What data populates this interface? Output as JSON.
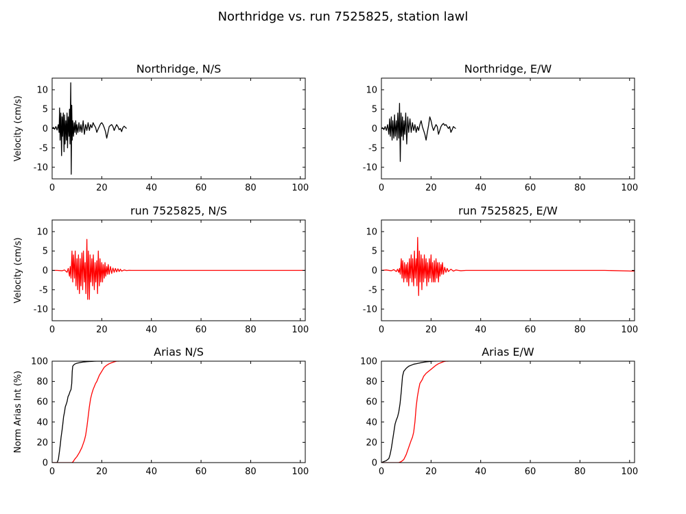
{
  "figure": {
    "title": "Northridge vs. run 7525825, station lawl"
  },
  "chart_data": [
    {
      "type": "line",
      "title": "Northridge, N/S",
      "ylabel": "Velocity (cm/s)",
      "xlim": [
        0,
        102
      ],
      "ylim": [
        -13,
        13
      ],
      "xticks": [
        "0",
        "20",
        "40",
        "60",
        "80",
        "100"
      ],
      "yticks": [
        "-10",
        "-5",
        "0",
        "5",
        "10"
      ],
      "series": [
        {
          "color": "#000000",
          "x": [
            0,
            0.5,
            1,
            1.5,
            2,
            2.5,
            2.8,
            3,
            3.2,
            3.5,
            3.8,
            4,
            4.2,
            4.5,
            4.8,
            5,
            5.2,
            5.5,
            5.8,
            6,
            6.2,
            6.5,
            6.8,
            7,
            7.2,
            7.5,
            7.7,
            7.9,
            8.1,
            8.3,
            8.6,
            8.9,
            9.2,
            9.5,
            9.8,
            10,
            10.4,
            10.8,
            11.2,
            11.6,
            12,
            12.5,
            13,
            13.5,
            14,
            14.5,
            15,
            15.5,
            16,
            16.5,
            17,
            17.5,
            18,
            18.5,
            19,
            19.5,
            20,
            20.5,
            21,
            21.5,
            22,
            22.5,
            23,
            23.5,
            24,
            24.5,
            25,
            25.5,
            26,
            26.5,
            27,
            27.5,
            28,
            28.5,
            29,
            29.5,
            30
          ],
          "y": [
            0,
            0.3,
            -0.2,
            0.5,
            -0.4,
            1,
            -1,
            5.3,
            -3,
            4,
            -7,
            3,
            -2,
            4,
            -6,
            3.5,
            -4,
            2,
            -3,
            4,
            -5,
            3,
            -2,
            5,
            -4,
            11.8,
            -11.8,
            6,
            -3,
            2,
            -2,
            1.5,
            -1,
            2,
            -1.5,
            1,
            -1,
            1.5,
            -0.8,
            1,
            -1,
            2,
            -1.5,
            1,
            -0.5,
            1.5,
            -0.5,
            1,
            0.2,
            1.5,
            0.8,
            0.3,
            -1,
            -0.2,
            0.5,
            1.2,
            1.5,
            1,
            0.2,
            -0.8,
            -2.5,
            -1,
            0.5,
            0.8,
            1,
            0.5,
            -0.5,
            0.3,
            1,
            0.5,
            -0.3,
            0,
            -0.8,
            0.2,
            0.6,
            0.3,
            0
          ]
        }
      ]
    },
    {
      "type": "line",
      "title": "Northridge, E/W",
      "ylabel": "",
      "xlim": [
        0,
        102
      ],
      "ylim": [
        -13,
        13
      ],
      "xticks": [
        "0",
        "20",
        "40",
        "60",
        "80",
        "100"
      ],
      "yticks": [
        "-10",
        "-5",
        "0",
        "5",
        "10"
      ],
      "series": [
        {
          "color": "#000000",
          "x": [
            0,
            0.5,
            1,
            1.5,
            2,
            2.5,
            3,
            3.3,
            3.6,
            4,
            4.3,
            4.6,
            5,
            5.3,
            5.6,
            6,
            6.3,
            6.6,
            7,
            7.3,
            7.6,
            7.9,
            8.2,
            8.5,
            8.8,
            9.1,
            9.4,
            9.8,
            10.2,
            10.6,
            11,
            11.5,
            12,
            12.5,
            13,
            13.5,
            14,
            14.5,
            15,
            15.5,
            16,
            16.5,
            17,
            17.5,
            18,
            18.5,
            19,
            19.5,
            20,
            20.5,
            21,
            21.5,
            22,
            22.5,
            23,
            23.5,
            24,
            24.5,
            25,
            25.5,
            26,
            26.5,
            27,
            27.5,
            28,
            28.5,
            29,
            29.5,
            30
          ],
          "y": [
            0,
            0.2,
            -0.3,
            0.5,
            -0.5,
            1,
            -1.5,
            2.5,
            -2,
            3,
            -3,
            2,
            -2.5,
            3.5,
            -2,
            2,
            -3,
            4,
            -2.5,
            6.5,
            -8.5,
            4,
            -2,
            3,
            -3,
            2,
            -1.5,
            4,
            -4,
            3,
            -1,
            2.5,
            -1,
            1.5,
            -0.5,
            1,
            -1,
            0.5,
            -0.5,
            1,
            2,
            0.5,
            -0.5,
            -1.5,
            -3,
            -1,
            0.8,
            3,
            2,
            0.5,
            -0.5,
            0.3,
            1,
            0.5,
            -1.5,
            -0.5,
            0.5,
            1,
            1.3,
            0.8,
            1,
            0.5,
            0,
            0.5,
            -1,
            -0.3,
            0.5,
            0.2,
            0
          ]
        }
      ]
    },
    {
      "type": "line",
      "title": "run 7525825, N/S",
      "ylabel": "Velocity (cm/s)",
      "xlim": [
        0,
        102
      ],
      "ylim": [
        -13,
        13
      ],
      "xticks": [
        "0",
        "20",
        "40",
        "60",
        "80",
        "100"
      ],
      "yticks": [
        "-10",
        "-5",
        "0",
        "5",
        "10"
      ],
      "series": [
        {
          "color": "#ff0000",
          "x": [
            0,
            2,
            4,
            5,
            6,
            6.5,
            7,
            7.3,
            7.6,
            8,
            8.3,
            8.6,
            9,
            9.3,
            9.6,
            10,
            10.3,
            10.6,
            11,
            11.3,
            11.6,
            12,
            12.3,
            12.6,
            13,
            13.3,
            13.6,
            14,
            14.3,
            14.6,
            15,
            15.3,
            15.6,
            16,
            16.3,
            16.6,
            17,
            17.3,
            17.6,
            18,
            18.3,
            18.6,
            19,
            19.3,
            19.6,
            20,
            20.3,
            20.6,
            21,
            21.3,
            21.6,
            22,
            22.3,
            22.6,
            23,
            23.5,
            24,
            24.5,
            25,
            25.5,
            26,
            26.5,
            27,
            27.5,
            28,
            29,
            30,
            31,
            32,
            34,
            36,
            40,
            50,
            60,
            70,
            80,
            90,
            102
          ],
          "y": [
            0,
            0,
            -0.1,
            0.1,
            -0.5,
            0.5,
            -1.5,
            1,
            -2,
            5,
            -3,
            4,
            -2,
            5,
            -4,
            3,
            -5,
            4,
            -6,
            3,
            -4,
            4.5,
            -5,
            5,
            -3,
            2,
            -6,
            8,
            -7.5,
            5,
            -7.5,
            4,
            -3,
            3,
            -4,
            4,
            -5,
            2,
            -3,
            2.5,
            -6,
            5,
            -4,
            3,
            -3,
            2,
            -3,
            1.5,
            -2,
            2,
            -1.5,
            1,
            -1,
            1.5,
            -1,
            1,
            -0.8,
            0.6,
            -0.5,
            0.5,
            -0.4,
            0.4,
            -0.3,
            0.3,
            -0.2,
            0.1,
            -0.05,
            0.02,
            0,
            0,
            0,
            0,
            0,
            0,
            0,
            0,
            0,
            0
          ]
        }
      ]
    },
    {
      "type": "line",
      "title": "run 7525825, E/W",
      "ylabel": "",
      "xlim": [
        0,
        102
      ],
      "ylim": [
        -13,
        13
      ],
      "xticks": [
        "0",
        "20",
        "40",
        "60",
        "80",
        "100"
      ],
      "yticks": [
        "-10",
        "-5",
        "0",
        "5",
        "10"
      ],
      "series": [
        {
          "color": "#ff0000",
          "x": [
            0,
            2,
            4,
            5,
            6,
            6.5,
            7,
            7.3,
            7.6,
            8,
            8.3,
            8.6,
            9,
            9.3,
            9.6,
            10,
            10.3,
            10.6,
            11,
            11.3,
            11.6,
            12,
            12.3,
            12.6,
            13,
            13.3,
            13.6,
            14,
            14.3,
            14.6,
            15,
            15.3,
            15.6,
            16,
            16.3,
            16.6,
            17,
            17.3,
            17.6,
            18,
            18.3,
            18.6,
            19,
            19.3,
            19.6,
            20,
            20.3,
            20.6,
            21,
            21.3,
            21.6,
            22,
            22.3,
            22.6,
            23,
            23.3,
            23.6,
            24,
            24.3,
            24.6,
            25,
            25.5,
            26,
            26.5,
            27,
            28,
            29,
            30,
            31,
            32,
            34,
            36,
            40,
            50,
            60,
            70,
            80,
            90,
            102
          ],
          "y": [
            0,
            0.1,
            -0.1,
            0.2,
            -0.3,
            0.3,
            -0.5,
            0.5,
            -1,
            3,
            -2,
            2.5,
            -3,
            2,
            -2,
            1.5,
            -3,
            2,
            -4,
            3,
            -2,
            4,
            -3,
            3,
            -4,
            5,
            -2,
            3,
            -4,
            8.5,
            -6.5,
            5,
            -3,
            4,
            -5,
            3,
            -3,
            4,
            -2,
            3,
            -4,
            2,
            -3,
            3,
            -2,
            4,
            -3,
            2,
            -3,
            2.5,
            -3,
            3,
            -2,
            2,
            -3,
            2,
            -1.5,
            1.5,
            -1,
            2,
            -1,
            0.8,
            -0.5,
            0.5,
            -0.3,
            0.3,
            -0.2,
            0.1,
            0,
            -0.1,
            0,
            0,
            0,
            0,
            0,
            0,
            0,
            0,
            -0.2
          ]
        }
      ]
    },
    {
      "type": "line",
      "title": "Arias N/S",
      "ylabel": "Norm Arias Int (%)",
      "xlim": [
        0,
        102
      ],
      "ylim": [
        0,
        100
      ],
      "xticks": [
        "0",
        "20",
        "40",
        "60",
        "80",
        "100"
      ],
      "yticks": [
        "0",
        "20",
        "40",
        "60",
        "80",
        "100"
      ],
      "series": [
        {
          "color": "#000000",
          "x": [
            0,
            2,
            2.5,
            3,
            3.3,
            3.6,
            4,
            4.3,
            4.6,
            5,
            5.3,
            5.6,
            6,
            6.4,
            6.8,
            7.2,
            7.6,
            7.9,
            8.1,
            8.3,
            8.6,
            9,
            10,
            11,
            12,
            13,
            14,
            15,
            16,
            17,
            18,
            19,
            20
          ],
          "y": [
            0,
            0,
            3,
            12,
            18,
            25,
            32,
            38,
            45,
            50,
            55,
            57,
            60,
            65,
            67,
            70,
            72,
            78,
            90,
            95,
            96,
            97,
            98,
            98.5,
            99,
            99.3,
            99.5,
            99.7,
            99.8,
            99.9,
            100,
            100,
            100
          ]
        },
        {
          "color": "#ff0000",
          "x": [
            0,
            8,
            8.5,
            9,
            10,
            11,
            12,
            13,
            13.5,
            14,
            14.5,
            15,
            15.5,
            16,
            16.5,
            17,
            17.5,
            18,
            18.5,
            19,
            19.5,
            20,
            20.5,
            21,
            22,
            23,
            24,
            25,
            26,
            27
          ],
          "y": [
            0,
            0,
            1,
            3,
            6,
            10,
            15,
            22,
            27,
            35,
            45,
            55,
            63,
            68,
            72,
            75,
            78,
            80,
            83,
            86,
            88,
            90,
            92,
            94,
            96,
            97.5,
            98.5,
            99.3,
            100,
            100
          ]
        }
      ]
    },
    {
      "type": "line",
      "title": "Arias E/W",
      "ylabel": "",
      "xlim": [
        0,
        102
      ],
      "ylim": [
        0,
        100
      ],
      "xticks": [
        "0",
        "20",
        "40",
        "60",
        "80",
        "100"
      ],
      "yticks": [
        "0",
        "20",
        "40",
        "60",
        "80",
        "100"
      ],
      "series": [
        {
          "color": "#000000",
          "x": [
            0,
            1,
            2,
            3,
            3.5,
            4,
            4.5,
            5,
            5.5,
            6,
            6.5,
            7,
            7.5,
            8,
            8.5,
            9,
            10,
            11,
            12,
            13,
            14,
            15,
            16,
            17,
            18,
            19,
            20,
            21,
            22
          ],
          "y": [
            0,
            1,
            2,
            4,
            8,
            14,
            22,
            30,
            38,
            42,
            45,
            50,
            58,
            70,
            85,
            90,
            93,
            95,
            96,
            97,
            97.5,
            98,
            98.5,
            99,
            99.3,
            99.6,
            99.8,
            100,
            100
          ]
        },
        {
          "color": "#ff0000",
          "x": [
            0,
            7,
            8,
            9,
            10,
            11,
            12,
            12.5,
            13,
            13.5,
            14,
            14.5,
            15,
            15.5,
            16,
            16.5,
            17,
            18,
            19,
            20,
            21,
            22,
            23,
            24,
            25,
            26,
            27
          ],
          "y": [
            0,
            0,
            1,
            3,
            8,
            15,
            22,
            25,
            30,
            40,
            55,
            65,
            72,
            78,
            80,
            82,
            85,
            88,
            90,
            92,
            94,
            96,
            97.5,
            98.5,
            99.5,
            100,
            100
          ]
        }
      ]
    }
  ]
}
